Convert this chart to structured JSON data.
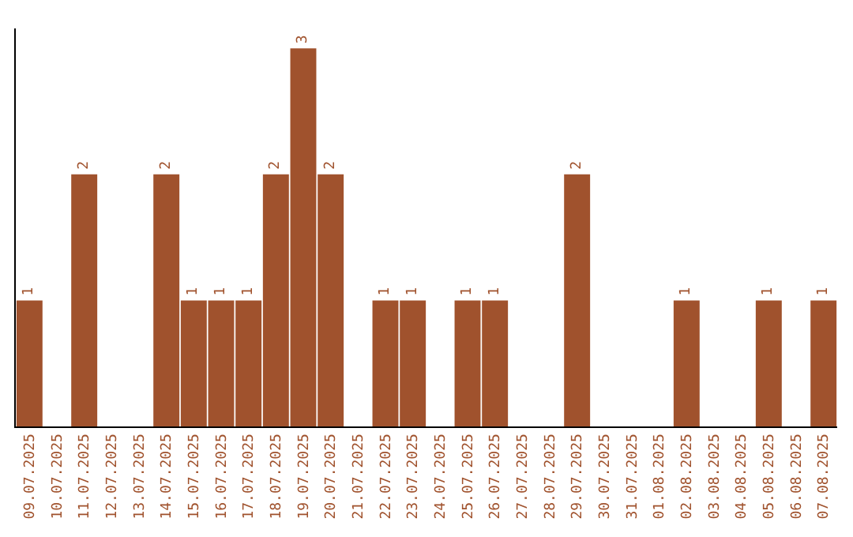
{
  "chart_data": {
    "type": "bar",
    "categories": [
      "09.07.2025",
      "10.07.2025",
      "11.07.2025",
      "12.07.2025",
      "13.07.2025",
      "14.07.2025",
      "15.07.2025",
      "16.07.2025",
      "17.07.2025",
      "18.07.2025",
      "19.07.2025",
      "20.07.2025",
      "21.07.2025",
      "22.07.2025",
      "23.07.2025",
      "24.07.2025",
      "25.07.2025",
      "26.07.2025",
      "27.07.2025",
      "28.07.2025",
      "29.07.2025",
      "30.07.2025",
      "31.07.2025",
      "01.08.2025",
      "02.08.2025",
      "03.08.2025",
      "04.08.2025",
      "05.08.2025",
      "06.08.2025",
      "07.08.2025"
    ],
    "values": [
      1,
      0,
      2,
      0,
      0,
      2,
      1,
      1,
      1,
      2,
      3,
      2,
      0,
      1,
      1,
      0,
      1,
      1,
      0,
      0,
      2,
      0,
      0,
      0,
      1,
      0,
      0,
      1,
      0,
      1
    ],
    "value_labels": [
      "1",
      null,
      "2",
      null,
      null,
      "2",
      "1",
      "1",
      "1",
      "2",
      "3",
      "2",
      null,
      "1",
      "1",
      null,
      "1",
      "1",
      null,
      null,
      "2",
      null,
      null,
      null,
      "1",
      null,
      null,
      "1",
      null,
      "1"
    ],
    "color": "#a0522d",
    "tick_labels": "x",
    "legend": false
  }
}
